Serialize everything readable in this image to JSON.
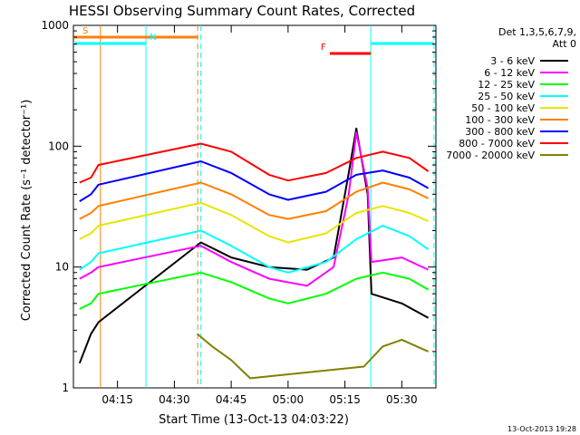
{
  "chart_data": {
    "type": "line",
    "title": "HESSI Observing Summary Count Rates, Corrected",
    "xlabel": "Start Time (13-Oct-13 04:03:22)",
    "ylabel": "Corrected Count Rate (s⁻¹ detector⁻¹)",
    "y_scale": "log",
    "ylim": [
      1,
      1000
    ],
    "xlim": [
      "04:03:22",
      "05:39:00"
    ],
    "x_ticks": [
      "04:15",
      "04:30",
      "04:45",
      "05:00",
      "05:15",
      "05:30"
    ],
    "y_ticks": [
      "1",
      "10",
      "100",
      "1000"
    ],
    "legend_title": [
      "Det 1,3,5,6,7,9,",
      "Att 0"
    ],
    "legend_placement": "right",
    "footer_date": "13-Oct-2013 19:28",
    "flags": [
      {
        "label": "S",
        "color": "#ff8000",
        "start": "04:03:22",
        "end": "04:36:10"
      },
      {
        "label": "N",
        "color": "#00ffff",
        "start": "04:03:22",
        "end": "04:22:30"
      },
      {
        "label": "F",
        "color": "#ff0000",
        "start": "05:11:00",
        "end": "05:21:50"
      },
      {
        "label": "",
        "color": "#00ffff",
        "start": "05:21:50",
        "end": "05:40:00"
      }
    ],
    "gaps": [
      {
        "start": "04:10:30",
        "end": "04:36:10",
        "left_color": "#ff8000",
        "right_color": "#ff8000"
      },
      {
        "start": "04:22:30",
        "end": "04:37:00",
        "left_color": "#00ffff",
        "right_color": "#00ffff"
      },
      {
        "start": "05:21:50",
        "end": "05:40:00",
        "left_color": "#00ffff",
        "right_color": "#00ffff"
      }
    ],
    "series": [
      {
        "name": "3 - 6 keV",
        "color": "#000000",
        "x": [
          "04:05",
          "04:08",
          "04:10",
          "04:37",
          "04:45",
          "04:55",
          "05:05",
          "05:12",
          "05:16",
          "05:18",
          "05:21",
          "05:22",
          "05:30",
          "05:37"
        ],
        "values": [
          1.6,
          2.8,
          3.5,
          16,
          12,
          10,
          9.5,
          12,
          60,
          140,
          40,
          6,
          5,
          3.8
        ]
      },
      {
        "name": "6 - 12 keV",
        "color": "#ff00ff",
        "x": [
          "04:05",
          "04:08",
          "04:10",
          "04:37",
          "04:45",
          "04:55",
          "05:05",
          "05:12",
          "05:16",
          "05:18",
          "05:21",
          "05:22",
          "05:30",
          "05:37"
        ],
        "values": [
          8,
          9,
          10,
          15,
          11,
          8,
          7,
          10,
          40,
          130,
          45,
          11,
          12,
          9.5
        ]
      },
      {
        "name": "12 - 25 keV",
        "color": "#00ff00",
        "x": [
          "04:05",
          "04:08",
          "04:10",
          "04:37",
          "04:45",
          "04:55",
          "05:00",
          "05:10",
          "05:18",
          "05:25",
          "05:32",
          "05:37"
        ],
        "values": [
          4.5,
          5,
          6,
          9,
          7.5,
          5.5,
          5,
          6,
          8,
          9,
          8,
          6.5
        ]
      },
      {
        "name": "25 - 50 keV",
        "color": "#00ffff",
        "x": [
          "04:05",
          "04:08",
          "04:10",
          "04:37",
          "04:45",
          "04:55",
          "05:00",
          "05:10",
          "05:18",
          "05:25",
          "05:32",
          "05:37"
        ],
        "values": [
          9.5,
          11,
          13,
          20,
          15,
          10,
          9,
          11,
          17,
          22,
          18,
          14
        ]
      },
      {
        "name": "50 - 100 keV",
        "color": "#e6e600",
        "x": [
          "04:05",
          "04:08",
          "04:10",
          "04:37",
          "04:45",
          "04:55",
          "05:00",
          "05:10",
          "05:18",
          "05:25",
          "05:32",
          "05:37"
        ],
        "values": [
          17,
          19,
          22,
          34,
          27,
          18,
          16,
          19,
          28,
          32,
          28,
          24
        ]
      },
      {
        "name": "100 - 300 keV",
        "color": "#ff8000",
        "x": [
          "04:05",
          "04:08",
          "04:10",
          "04:37",
          "04:45",
          "04:55",
          "05:00",
          "05:10",
          "05:18",
          "05:25",
          "05:32",
          "05:37"
        ],
        "values": [
          25,
          28,
          32,
          50,
          40,
          27,
          25,
          29,
          42,
          50,
          44,
          37
        ]
      },
      {
        "name": "300 - 800 keV",
        "color": "#0000ff",
        "x": [
          "04:05",
          "04:08",
          "04:10",
          "04:37",
          "04:45",
          "04:55",
          "05:00",
          "05:10",
          "05:18",
          "05:25",
          "05:32",
          "05:37"
        ],
        "values": [
          35,
          40,
          48,
          75,
          60,
          40,
          36,
          42,
          58,
          63,
          55,
          45
        ]
      },
      {
        "name": "800 - 7000 keV",
        "color": "#ff0000",
        "x": [
          "04:05",
          "04:08",
          "04:10",
          "04:37",
          "04:45",
          "04:55",
          "05:00",
          "05:10",
          "05:18",
          "05:25",
          "05:32",
          "05:37"
        ],
        "values": [
          50,
          55,
          70,
          105,
          90,
          58,
          52,
          60,
          80,
          90,
          80,
          62
        ]
      },
      {
        "name": "7000 - 20000 keV",
        "color": "#808000",
        "x": [
          "04:36",
          "04:40",
          "04:45",
          "04:50",
          "05:20",
          "05:25",
          "05:30",
          "05:37"
        ],
        "values": [
          2.8,
          2.2,
          1.7,
          1.2,
          1.5,
          2.2,
          2.5,
          2.0
        ]
      }
    ]
  }
}
